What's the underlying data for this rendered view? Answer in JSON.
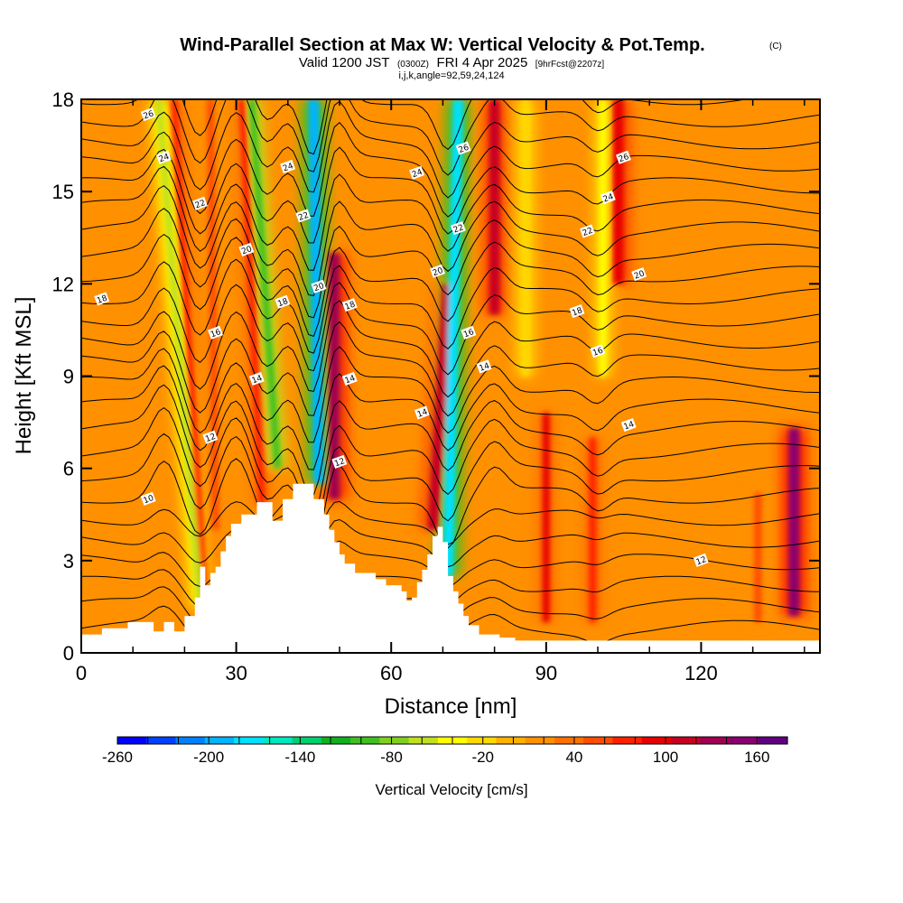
{
  "chart_data": {
    "type": "heatmap",
    "title": "Wind-Parallel Section at Max W: Vertical Velocity & Pot.Temp.",
    "title_mark": "(C)",
    "subtitle": {
      "valid_main": "Valid 1200 JST",
      "valid_utc": "(0300Z)",
      "valid_date": "FRI 4 Apr 2025",
      "forecast": "[9hrFcst@2207z]"
    },
    "subtitle2": "i,j,k,angle=92,59,24,124",
    "xlabel": "Distance [nm]",
    "ylabel": "Height [Kft MSL]",
    "xlim": [
      0,
      143
    ],
    "ylim": [
      0,
      18
    ],
    "x_ticks": [
      0,
      30,
      60,
      90,
      120
    ],
    "y_ticks": [
      0,
      3,
      6,
      9,
      12,
      15,
      18
    ],
    "colorbar": {
      "label": "Vertical Velocity [cm/s]",
      "min": -260,
      "max": 180,
      "step": 20,
      "tick_labels": [
        -260,
        -200,
        -140,
        -80,
        -20,
        40,
        100,
        160
      ],
      "colors": [
        "#0000ff",
        "#0040ff",
        "#0080ff",
        "#00b4ff",
        "#00e0ff",
        "#00e8c0",
        "#00d070",
        "#10b020",
        "#40c020",
        "#80d020",
        "#c0e020",
        "#ffff00",
        "#ffd800",
        "#ffb000",
        "#ff9000",
        "#ff7000",
        "#ff4c00",
        "#ff2000",
        "#e80000",
        "#c80020",
        "#a00050",
        "#8a0070",
        "#600080"
      ]
    },
    "terrain_kft": [
      [
        0,
        0.6
      ],
      [
        4,
        0.6
      ],
      [
        4,
        0.8
      ],
      [
        9,
        0.8
      ],
      [
        9,
        1.0
      ],
      [
        14,
        1.0
      ],
      [
        14,
        0.7
      ],
      [
        16,
        0.7
      ],
      [
        16,
        1.0
      ],
      [
        18,
        1.0
      ],
      [
        18,
        0.7
      ],
      [
        20,
        0.7
      ],
      [
        20,
        1.2
      ],
      [
        22,
        1.2
      ],
      [
        22,
        1.8
      ],
      [
        23,
        1.8
      ],
      [
        23,
        2.8
      ],
      [
        24,
        2.8
      ],
      [
        24,
        2.2
      ],
      [
        25,
        2.2
      ],
      [
        25,
        2.6
      ],
      [
        26,
        2.6
      ],
      [
        26,
        2.8
      ],
      [
        27,
        2.8
      ],
      [
        27,
        3.3
      ],
      [
        28,
        3.3
      ],
      [
        28,
        3.8
      ],
      [
        29,
        3.8
      ],
      [
        29,
        4.2
      ],
      [
        31,
        4.2
      ],
      [
        31,
        4.5
      ],
      [
        34,
        4.5
      ],
      [
        34,
        4.9
      ],
      [
        37,
        4.9
      ],
      [
        37,
        4.3
      ],
      [
        39,
        4.3
      ],
      [
        39,
        5.0
      ],
      [
        41,
        5.0
      ],
      [
        41,
        5.5
      ],
      [
        45,
        5.5
      ],
      [
        45,
        5.0
      ],
      [
        47,
        5.0
      ],
      [
        47,
        4.5
      ],
      [
        48,
        4.5
      ],
      [
        48,
        4.0
      ],
      [
        49,
        4.0
      ],
      [
        49,
        3.6
      ],
      [
        50,
        3.6
      ],
      [
        50,
        3.2
      ],
      [
        51,
        3.2
      ],
      [
        51,
        2.9
      ],
      [
        53,
        2.9
      ],
      [
        53,
        2.6
      ],
      [
        57,
        2.6
      ],
      [
        57,
        2.4
      ],
      [
        59,
        2.4
      ],
      [
        59,
        2.2
      ],
      [
        62,
        2.2
      ],
      [
        62,
        2.0
      ],
      [
        63,
        2.0
      ],
      [
        63,
        1.7
      ],
      [
        64,
        1.7
      ],
      [
        64,
        1.8
      ],
      [
        65,
        1.8
      ],
      [
        65,
        2.3
      ],
      [
        66,
        2.3
      ],
      [
        66,
        2.7
      ],
      [
        67,
        2.7
      ],
      [
        67,
        3.2
      ],
      [
        68,
        3.2
      ],
      [
        68,
        3.8
      ],
      [
        69,
        3.8
      ],
      [
        69,
        4.1
      ],
      [
        70,
        4.1
      ],
      [
        70,
        3.6
      ],
      [
        71,
        3.6
      ],
      [
        71,
        2.5
      ],
      [
        72,
        2.5
      ],
      [
        72,
        2.0
      ],
      [
        73,
        2.0
      ],
      [
        73,
        1.6
      ],
      [
        74,
        1.6
      ],
      [
        74,
        1.2
      ],
      [
        75,
        1.2
      ],
      [
        75,
        0.9
      ],
      [
        77,
        0.9
      ],
      [
        77,
        0.6
      ],
      [
        81,
        0.6
      ],
      [
        81,
        0.5
      ],
      [
        84,
        0.5
      ],
      [
        84,
        0.4
      ],
      [
        143,
        0.4
      ]
    ],
    "updraft_bands": [
      {
        "x_bottom": 24,
        "x_top": 18,
        "z_bottom": 1.5,
        "z_top": 18,
        "w": 90
      },
      {
        "x_bottom": 26,
        "x_top": 25,
        "z_bottom": 4,
        "z_top": 18,
        "w": 60
      },
      {
        "x_bottom": 35,
        "x_top": 31,
        "z_bottom": 4.8,
        "z_top": 18,
        "w": 80
      },
      {
        "x_bottom": 49,
        "x_top": 49,
        "z_bottom": 5,
        "z_top": 13,
        "w": 150
      },
      {
        "x_bottom": 68,
        "x_top": 71,
        "z_bottom": 4,
        "z_top": 12,
        "w": 120
      },
      {
        "x_bottom": 80,
        "x_top": 80,
        "z_bottom": 11,
        "z_top": 18,
        "w": 130
      },
      {
        "x_bottom": 104,
        "x_top": 104,
        "z_bottom": 12,
        "z_top": 18,
        "w": 110
      },
      {
        "x_bottom": 90,
        "x_top": 90,
        "z_bottom": 1.0,
        "z_top": 7.8,
        "w": 100
      },
      {
        "x_bottom": 99,
        "x_top": 99,
        "z_bottom": 1.0,
        "z_top": 7.0,
        "w": 90
      },
      {
        "x_bottom": 138,
        "x_top": 138,
        "z_bottom": 1.2,
        "z_top": 7.3,
        "w": 170
      },
      {
        "x_bottom": 131,
        "x_top": 131,
        "z_bottom": 1.0,
        "z_top": 5.2,
        "w": 70
      }
    ],
    "downdraft_bands": [
      {
        "x_bottom": 23,
        "x_top": 15,
        "z_bottom": 1.5,
        "z_top": 18,
        "w": -60
      },
      {
        "x_bottom": 38,
        "x_top": 33,
        "z_bottom": 6,
        "z_top": 18,
        "w": -90
      },
      {
        "x_bottom": 46,
        "x_top": 45,
        "z_bottom": 5.5,
        "z_top": 18,
        "w": -200
      },
      {
        "x_bottom": 71,
        "x_top": 73,
        "z_bottom": 2.5,
        "z_top": 18,
        "w": -180
      },
      {
        "x_bottom": 101,
        "x_top": 101,
        "z_bottom": 9,
        "z_top": 18,
        "w": -30
      },
      {
        "x_bottom": 86,
        "x_top": 86,
        "z_bottom": 9,
        "z_top": 18,
        "w": -20
      }
    ],
    "theta_contours": [
      {
        "value": 10,
        "label": "10",
        "label_x": 13,
        "z_base": 5.0
      },
      {
        "value": 12,
        "label": "12",
        "label_x": 25,
        "z_base": 7.0
      },
      {
        "value": 12,
        "label": "12",
        "label_x": 50,
        "z_base": 6.2
      },
      {
        "value": 12,
        "label": "12",
        "label_x": 120,
        "z_base": 3.0
      },
      {
        "value": 14,
        "label": "14",
        "label_x": 34,
        "z_base": 8.9
      },
      {
        "value": 14,
        "label": "14",
        "label_x": 52,
        "z_base": 8.9
      },
      {
        "value": 14,
        "label": "14",
        "label_x": 66,
        "z_base": 7.8
      },
      {
        "value": 14,
        "label": "14",
        "label_x": 78,
        "z_base": 9.3
      },
      {
        "value": 14,
        "label": "14",
        "label_x": 106,
        "z_base": 7.4
      },
      {
        "value": 16,
        "label": "16",
        "label_x": 26,
        "z_base": 10.4
      },
      {
        "value": 16,
        "label": "16",
        "label_x": 75,
        "z_base": 10.4
      },
      {
        "value": 16,
        "label": "16",
        "label_x": 100,
        "z_base": 9.8
      },
      {
        "value": 18,
        "label": "18",
        "label_x": 4,
        "z_base": 11.5
      },
      {
        "value": 18,
        "label": "18",
        "label_x": 39,
        "z_base": 11.4
      },
      {
        "value": 18,
        "label": "18",
        "label_x": 52,
        "z_base": 11.3
      },
      {
        "value": 18,
        "label": "18",
        "label_x": 96,
        "z_base": 11.1
      },
      {
        "value": 20,
        "label": "20",
        "label_x": 32,
        "z_base": 13.1
      },
      {
        "value": 20,
        "label": "20",
        "label_x": 46,
        "z_base": 11.9
      },
      {
        "value": 20,
        "label": "20",
        "label_x": 69,
        "z_base": 12.4
      },
      {
        "value": 20,
        "label": "20",
        "label_x": 108,
        "z_base": 12.3
      },
      {
        "value": 22,
        "label": "22",
        "label_x": 23,
        "z_base": 14.6
      },
      {
        "value": 22,
        "label": "22",
        "label_x": 43,
        "z_base": 14.2
      },
      {
        "value": 22,
        "label": "22",
        "label_x": 73,
        "z_base": 13.8
      },
      {
        "value": 22,
        "label": "22",
        "label_x": 98,
        "z_base": 13.7
      },
      {
        "value": 24,
        "label": "24",
        "label_x": 16,
        "z_base": 16.1
      },
      {
        "value": 24,
        "label": "24",
        "label_x": 40,
        "z_base": 15.8
      },
      {
        "value": 24,
        "label": "24",
        "label_x": 65,
        "z_base": 15.6
      },
      {
        "value": 24,
        "label": "24",
        "label_x": 102,
        "z_base": 14.8
      },
      {
        "value": 26,
        "label": "26",
        "label_x": 13,
        "z_base": 17.5
      },
      {
        "value": 26,
        "label": "26",
        "label_x": 74,
        "z_base": 16.4
      },
      {
        "value": 26,
        "label": "26",
        "label_x": 105,
        "z_base": 16.1
      }
    ]
  }
}
